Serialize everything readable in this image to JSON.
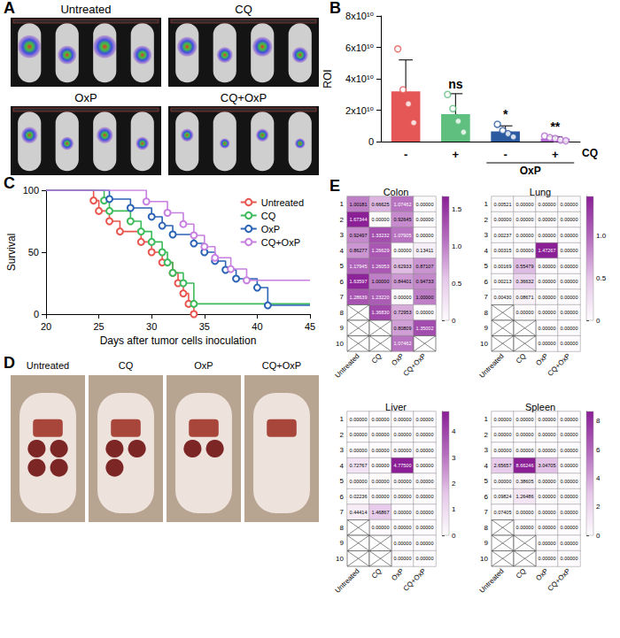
{
  "photo_panels": [
    {
      "panel": "A",
      "labels": [
        "Untreated",
        "CQ",
        "OxP",
        "CQ+OxP"
      ]
    },
    {
      "panel": "D",
      "labels": [
        "Untreated",
        "CQ",
        "OxP",
        "CQ+OxP"
      ]
    }
  ],
  "chart_data": [
    {
      "panel": "B",
      "type": "bar",
      "categories": [
        "-",
        "+",
        "-",
        "+"
      ],
      "xlabel": "CQ",
      "groups": [
        null,
        null,
        "OxP",
        "OxP"
      ],
      "ylabel": "ROI",
      "values": [
        32000000000.0,
        17500000000.0,
        6500000000.0,
        1900000000.0
      ],
      "errors": [
        20000000000.0,
        13000000000.0,
        3500000000.0,
        1200000000.0
      ],
      "points": [
        [
          59000000000.0,
          33000000000.0,
          24000000000.0,
          12000000000.0
        ],
        [
          30000000000.0,
          21000000000.0,
          13000000000.0,
          6000000000.0
        ],
        [
          11000000000.0,
          7000000000.0,
          5000000000.0,
          3000000000.0
        ],
        [
          3500000000.0,
          2500000000.0,
          2000000000.0,
          1000000000.0,
          500000000.0
        ]
      ],
      "significance": [
        null,
        "ns",
        "*",
        "**"
      ],
      "colors": [
        "#e45756",
        "#5fbf7f",
        "#2c5aa0",
        "#b36ad1"
      ],
      "ylim": [
        0,
        80000000000.0
      ],
      "yticks": [
        0,
        {
          "value": 20000000000.0,
          "label": "2x10¹⁰"
        },
        {
          "value": 40000000000.0,
          "label": "4x10¹⁰"
        },
        {
          "value": 60000000000.0,
          "label": "6x10¹⁰"
        },
        {
          "value": 80000000000.0,
          "label": "8x10¹⁰"
        }
      ],
      "grid": false
    },
    {
      "panel": "C",
      "type": "line",
      "xlabel": "Days after tumor cells inoculation",
      "ylabel": "Survival",
      "marker": "open_circle",
      "line_style": "step",
      "legend": "upper right",
      "grid": false,
      "xlim": [
        20,
        45
      ],
      "xticks": [
        20,
        25,
        30,
        35,
        40,
        45
      ],
      "ylim": [
        0,
        100
      ],
      "yticks": [
        0,
        50,
        100
      ],
      "series": [
        {
          "name": "Untreated",
          "color": "#e8554e",
          "x": [
            20,
            24.5,
            25,
            26,
            27,
            29,
            30,
            31,
            32,
            32.5,
            33,
            33.5,
            34
          ],
          "values": [
            100,
            91.7,
            83.3,
            75,
            66.7,
            58.3,
            50,
            41.7,
            33.3,
            25,
            16.7,
            8.3,
            0
          ]
        },
        {
          "name": "CQ",
          "color": "#3dbb5b",
          "x": [
            20,
            25.5,
            26,
            28,
            29,
            30,
            31,
            31.5,
            32,
            33,
            34,
            45
          ],
          "values": [
            100,
            91.7,
            83.3,
            75,
            66.7,
            58.3,
            50,
            41.7,
            33.3,
            25,
            8.3,
            8.3
          ]
        },
        {
          "name": "OxP",
          "color": "#2b63b5",
          "x": [
            20,
            26,
            28,
            30,
            31,
            32,
            34,
            35,
            36,
            37,
            38,
            40,
            41,
            45
          ],
          "values": [
            100,
            92.9,
            85.7,
            78.6,
            71.4,
            64.3,
            57.1,
            50,
            42.9,
            35.7,
            28.6,
            21.4,
            7.1,
            7.1
          ]
        },
        {
          "name": "CQ+OxP",
          "color": "#c77fe0",
          "x": [
            20,
            29.5,
            31.5,
            33,
            34,
            35,
            36,
            37.5,
            39,
            45
          ],
          "values": [
            100,
            90.9,
            81.8,
            72.7,
            63.6,
            54.5,
            45.5,
            36.4,
            27.3,
            27.3
          ]
        }
      ]
    },
    {
      "panel": "E",
      "type": "heatmap",
      "title": "Colon",
      "x": [
        "Untreated",
        "CQ",
        "OxP",
        "CQ+OxP"
      ],
      "y": [
        "1",
        "2",
        "3",
        "4",
        "5",
        "6",
        "7",
        "8",
        "9",
        "10"
      ],
      "values": [
        [
          1.00181,
          0.66625,
          1.07462,
          0
        ],
        [
          1.67344,
          0,
          0.92645,
          0
        ],
        [
          0.92497,
          1.33232,
          1.07905,
          0
        ],
        [
          0.86277,
          1.26629,
          0,
          0.13411
        ],
        [
          1.17945,
          1.26053,
          0.62933,
          0.87107
        ],
        [
          1.63597,
          1,
          0.84401,
          0.94733
        ],
        [
          1.28639,
          1.2322,
          0,
          1
        ],
        [
          null,
          1.3683,
          0.72953,
          0
        ],
        [
          null,
          null,
          0.80809,
          1.35002
        ],
        [
          null,
          null,
          1.07462,
          null
        ]
      ],
      "value_labels": [
        [
          "1.00181",
          "0.66625",
          "1.07462",
          "0.00000"
        ],
        [
          "1.67344",
          "0.00000",
          "0.92645",
          "0.00000"
        ],
        [
          "0.92497",
          "1.33232",
          "1.07905",
          "0.00000"
        ],
        [
          "0.86277",
          "1.26629",
          "0.00000",
          "0.13411"
        ],
        [
          "1.17945",
          "1.26053",
          "0.62933",
          "0.87107"
        ],
        [
          "1.63597",
          "1.00000",
          "0.84401",
          "0.94733"
        ],
        [
          "1.28639",
          "1.23220",
          "0.00000",
          "1.00000"
        ],
        [
          null,
          "1.36830",
          "0.72953",
          "0.00000"
        ],
        [
          null,
          null,
          "0.80809",
          "1.35002"
        ],
        [
          null,
          null,
          "1.07462",
          null
        ]
      ],
      "colorbar": {
        "range": [
          0,
          1.67344
        ],
        "ticks": [
          0,
          0.5,
          {
            "value": 1,
            "label": "1.0"
          },
          1.5
        ]
      }
    },
    {
      "type": "heatmap",
      "title": "Lung",
      "x": [
        "Untreated",
        "CQ",
        "OxP",
        "CQ+OxP"
      ],
      "y": [
        "1",
        "2",
        "3",
        "4",
        "5",
        "6",
        "7",
        "8",
        "9",
        "10"
      ],
      "values": [
        [
          0.00521,
          0,
          0,
          0
        ],
        [
          0,
          0,
          0,
          0
        ],
        [
          0.00237,
          0,
          0,
          0
        ],
        [
          0.00315,
          0,
          1.47267,
          0
        ],
        [
          0.00169,
          0.55479,
          0,
          0
        ],
        [
          0.00213,
          0.36632,
          0,
          0
        ],
        [
          0.0043,
          0.08671,
          0,
          0
        ],
        [
          null,
          0,
          0,
          0
        ],
        [
          null,
          null,
          0,
          0
        ],
        [
          null,
          null,
          0,
          0
        ]
      ],
      "value_labels": [
        [
          "0.00521",
          "0.00000",
          "0.00000",
          "0.00000"
        ],
        [
          "0.00000",
          "0.00000",
          "0.00000",
          "0.00000"
        ],
        [
          "0.00237",
          "0.00000",
          "0.00000",
          "0.00000"
        ],
        [
          "0.00315",
          "0.00000",
          "1.47267",
          "0.00000"
        ],
        [
          "0.00169",
          "0.55479",
          "0.00000",
          "0.00000"
        ],
        [
          "0.00213",
          "0.36632",
          "0.00000",
          "0.00000"
        ],
        [
          "0.00430",
          "0.08671",
          "0.00000",
          "0.00000"
        ],
        [
          null,
          "0.00000",
          "0.00000",
          "0.00000"
        ],
        [
          null,
          null,
          "0.00000",
          "0.00000"
        ],
        [
          null,
          null,
          "0.00000",
          "0.00000"
        ]
      ],
      "colorbar": {
        "range": [
          0,
          1.47267
        ],
        "ticks": [
          0,
          0.5,
          {
            "value": 1,
            "label": "1.0"
          }
        ]
      }
    },
    {
      "type": "heatmap",
      "title": "Liver",
      "x": [
        "Untreated",
        "CQ",
        "OxP",
        "CQ+OxP"
      ],
      "y": [
        "1",
        "2",
        "3",
        "4",
        "5",
        "6",
        "7",
        "8",
        "9",
        "10"
      ],
      "values": [
        [
          0,
          0,
          0,
          0
        ],
        [
          0,
          0,
          0,
          0
        ],
        [
          0,
          0,
          0,
          0
        ],
        [
          0.72767,
          0,
          4.775,
          0
        ],
        [
          0,
          0,
          0,
          0
        ],
        [
          0.02236,
          0,
          0,
          0
        ],
        [
          0.44414,
          1.46867,
          0,
          0
        ],
        [
          null,
          0,
          0,
          0
        ],
        [
          null,
          null,
          0,
          0
        ],
        [
          null,
          null,
          0,
          0
        ]
      ],
      "value_labels": [
        [
          "0.00000",
          "0.00000",
          "0.00000",
          "0.00000"
        ],
        [
          "0.00000",
          "0.00000",
          "0.00000",
          "0.00000"
        ],
        [
          "0.00000",
          "0.00000",
          "0.00000",
          "0.00000"
        ],
        [
          "0.72767",
          "0.00000",
          "4.77500",
          "0.00000"
        ],
        [
          "0.00000",
          "0.00000",
          "0.00000",
          "0.00000"
        ],
        [
          "0.02236",
          "0.00000",
          "0.00000",
          "0.00000"
        ],
        [
          "0.44414",
          "1.46867",
          "0.00000",
          "0.00000"
        ],
        [
          null,
          "0.00000",
          "0.00000",
          "0.00000"
        ],
        [
          null,
          null,
          "0.00000",
          "0.00000"
        ],
        [
          null,
          null,
          "0.00000",
          "0.00000"
        ]
      ],
      "colorbar": {
        "range": [
          0,
          4.775
        ],
        "ticks": [
          0,
          1,
          2,
          3,
          4
        ]
      }
    },
    {
      "type": "heatmap",
      "title": "Spleen",
      "x": [
        "Untreated",
        "CQ",
        "OxP",
        "CQ+OxP"
      ],
      "y": [
        "1",
        "2",
        "3",
        "4",
        "5",
        "6",
        "7",
        "8",
        "9",
        "10"
      ],
      "values": [
        [
          0,
          0,
          0,
          0
        ],
        [
          0,
          0,
          0,
          0
        ],
        [
          0,
          0,
          0,
          0
        ],
        [
          2.65657,
          8.66246,
          3.04705,
          0
        ],
        [
          0,
          0.38605,
          0,
          0
        ],
        [
          0.09824,
          1.26486,
          0,
          0
        ],
        [
          0.07405,
          0,
          0,
          0
        ],
        [
          null,
          0,
          0,
          0
        ],
        [
          null,
          null,
          0,
          0
        ],
        [
          null,
          null,
          0,
          0
        ]
      ],
      "value_labels": [
        [
          "0.00000",
          "0.00000",
          "0.00000",
          "0.00000"
        ],
        [
          "0.00000",
          "0.00000",
          "0.00000",
          "0.00000"
        ],
        [
          "0.00000",
          "0.00000",
          "0.00000",
          "0.00000"
        ],
        [
          "2.65657",
          "8.66246",
          "3.04705",
          "0.00000"
        ],
        [
          "0.00000",
          "0.38605",
          "0.00000",
          "0.00000"
        ],
        [
          "0.09824",
          "1.26486",
          "0.00000",
          "0.00000"
        ],
        [
          "0.07405",
          "0.00000",
          "0.00000",
          "0.00000"
        ],
        [
          null,
          "0.00000",
          "0.00000",
          "0.00000"
        ],
        [
          null,
          null,
          "0.00000",
          "0.00000"
        ],
        [
          null,
          null,
          "0.00000",
          "0.00000"
        ]
      ],
      "colorbar": {
        "range": [
          0,
          8.66246
        ],
        "ticks": [
          0,
          2,
          4,
          6,
          8
        ]
      }
    }
  ]
}
